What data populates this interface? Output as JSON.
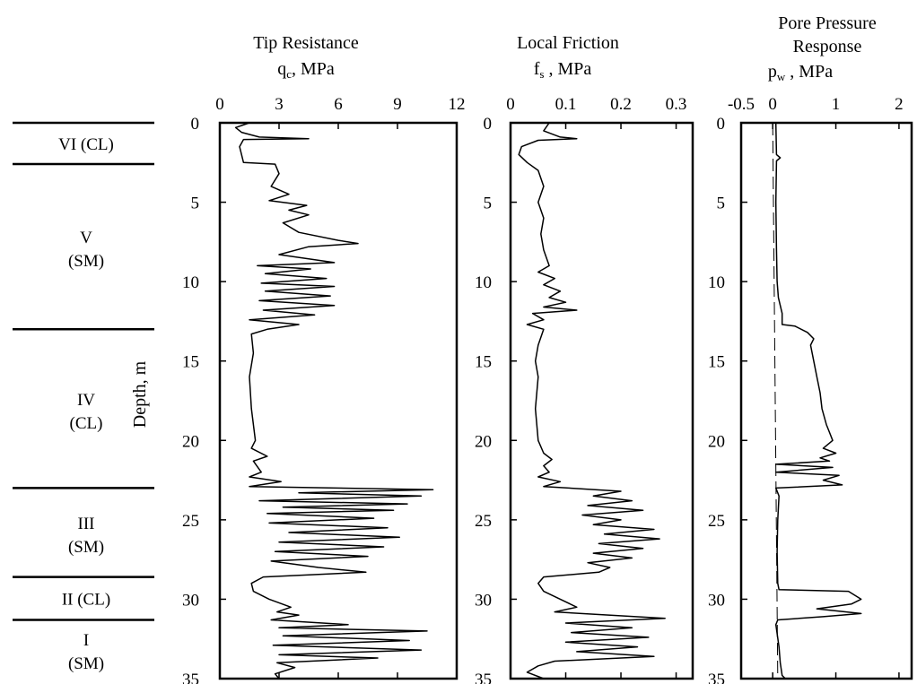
{
  "chart_data": {
    "type": "line",
    "y_axis": {
      "label": "Depth,  m",
      "range": [
        0,
        35
      ],
      "reversed": true,
      "ticks": [
        "0",
        "5",
        "10",
        "15",
        "20",
        "25",
        "30",
        "35"
      ]
    },
    "panels": [
      {
        "id": "tip",
        "title": "Tip Resistance",
        "xlabel_symbol": "q",
        "xlabel_sub": "c",
        "xlabel_unit": ",  MPa",
        "xlim": [
          0,
          12
        ],
        "xticks": [
          "0",
          "3",
          "6",
          "9",
          "12"
        ],
        "profile": [
          [
            0,
            1.5
          ],
          [
            0.3,
            0.8
          ],
          [
            0.6,
            1.1
          ],
          [
            0.9,
            2.0
          ],
          [
            1.0,
            4.5
          ],
          [
            1.05,
            1.2
          ],
          [
            1.5,
            1.0
          ],
          [
            2.5,
            1.2
          ],
          [
            2.6,
            2.8
          ],
          [
            3.2,
            3.0
          ],
          [
            4.0,
            2.6
          ],
          [
            4.5,
            3.5
          ],
          [
            4.9,
            2.5
          ],
          [
            5.2,
            4.4
          ],
          [
            5.5,
            3.5
          ],
          [
            5.8,
            4.5
          ],
          [
            6.3,
            3.2
          ],
          [
            6.9,
            4.0
          ],
          [
            7.4,
            6.0
          ],
          [
            7.6,
            7.0
          ],
          [
            7.8,
            4.5
          ],
          [
            8.3,
            3.0
          ],
          [
            8.8,
            5.8
          ],
          [
            9.0,
            1.9
          ],
          [
            9.2,
            4.6
          ],
          [
            9.5,
            2.3
          ],
          [
            9.8,
            5.4
          ],
          [
            10.1,
            2.1
          ],
          [
            10.3,
            5.8
          ],
          [
            10.6,
            2.3
          ],
          [
            10.9,
            5.6
          ],
          [
            11.2,
            2.0
          ],
          [
            11.5,
            5.8
          ],
          [
            11.8,
            2.2
          ],
          [
            12.1,
            4.8
          ],
          [
            12.4,
            1.5
          ],
          [
            12.7,
            4.0
          ],
          [
            13.0,
            2.4
          ],
          [
            13.3,
            1.6
          ],
          [
            14.5,
            1.7
          ],
          [
            16.0,
            1.5
          ],
          [
            18.0,
            1.6
          ],
          [
            20.0,
            1.8
          ],
          [
            20.5,
            1.6
          ],
          [
            21.0,
            2.4
          ],
          [
            21.3,
            1.7
          ],
          [
            22.0,
            2.1
          ],
          [
            22.3,
            1.5
          ],
          [
            22.6,
            3.1
          ],
          [
            22.9,
            1.5
          ],
          [
            23.1,
            10.8
          ],
          [
            23.3,
            4.0
          ],
          [
            23.5,
            10.2
          ],
          [
            23.8,
            2.0
          ],
          [
            24.0,
            9.5
          ],
          [
            24.2,
            3.2
          ],
          [
            24.4,
            8.8
          ],
          [
            24.6,
            2.4
          ],
          [
            24.9,
            7.8
          ],
          [
            25.2,
            2.5
          ],
          [
            25.5,
            8.5
          ],
          [
            25.8,
            3.5
          ],
          [
            26.1,
            9.1
          ],
          [
            26.4,
            3.0
          ],
          [
            26.7,
            8.3
          ],
          [
            27.0,
            2.8
          ],
          [
            27.3,
            7.5
          ],
          [
            27.6,
            2.6
          ],
          [
            28.0,
            5.0
          ],
          [
            28.3,
            7.4
          ],
          [
            28.6,
            2.2
          ],
          [
            29.0,
            1.6
          ],
          [
            29.5,
            1.7
          ],
          [
            30.0,
            2.5
          ],
          [
            30.5,
            3.6
          ],
          [
            30.8,
            2.9
          ],
          [
            31.0,
            4.0
          ],
          [
            31.3,
            2.6
          ],
          [
            31.6,
            6.5
          ],
          [
            31.8,
            3.0
          ],
          [
            32.0,
            10.5
          ],
          [
            32.3,
            3.2
          ],
          [
            32.6,
            9.6
          ],
          [
            32.9,
            2.7
          ],
          [
            33.2,
            10.2
          ],
          [
            33.5,
            3.0
          ],
          [
            33.7,
            8.0
          ],
          [
            34.0,
            2.9
          ],
          [
            34.3,
            3.8
          ],
          [
            34.7,
            2.8
          ],
          [
            35.0,
            3.0
          ]
        ]
      },
      {
        "id": "friction",
        "title": "Local Friction",
        "xlabel_symbol": "f",
        "xlabel_sub": "s",
        "xlabel_unit": " ,  MPa",
        "xlim": [
          0,
          0.33
        ],
        "xticks": [
          "0",
          "0.1",
          "0.2",
          "0.3"
        ],
        "profile": [
          [
            0,
            0.07
          ],
          [
            0.5,
            0.06
          ],
          [
            0.9,
            0.09
          ],
          [
            1.0,
            0.12
          ],
          [
            1.1,
            0.05
          ],
          [
            1.5,
            0.02
          ],
          [
            2.0,
            0.015
          ],
          [
            2.5,
            0.03
          ],
          [
            3.0,
            0.05
          ],
          [
            4.0,
            0.06
          ],
          [
            5.0,
            0.05
          ],
          [
            6.0,
            0.06
          ],
          [
            7.0,
            0.055
          ],
          [
            8.0,
            0.06
          ],
          [
            9.0,
            0.07
          ],
          [
            9.4,
            0.05
          ],
          [
            9.8,
            0.08
          ],
          [
            10.2,
            0.06
          ],
          [
            10.6,
            0.09
          ],
          [
            11.0,
            0.07
          ],
          [
            11.3,
            0.1
          ],
          [
            11.6,
            0.06
          ],
          [
            11.8,
            0.12
          ],
          [
            12.0,
            0.04
          ],
          [
            12.4,
            0.06
          ],
          [
            12.7,
            0.03
          ],
          [
            13.0,
            0.06
          ],
          [
            14.0,
            0.05
          ],
          [
            15.0,
            0.045
          ],
          [
            16.0,
            0.05
          ],
          [
            18.0,
            0.045
          ],
          [
            20.0,
            0.05
          ],
          [
            20.8,
            0.06
          ],
          [
            21.2,
            0.075
          ],
          [
            21.6,
            0.06
          ],
          [
            22.0,
            0.07
          ],
          [
            22.3,
            0.05
          ],
          [
            22.6,
            0.09
          ],
          [
            22.9,
            0.06
          ],
          [
            23.2,
            0.2
          ],
          [
            23.5,
            0.15
          ],
          [
            23.8,
            0.22
          ],
          [
            24.1,
            0.14
          ],
          [
            24.4,
            0.24
          ],
          [
            24.7,
            0.13
          ],
          [
            25.0,
            0.2
          ],
          [
            25.3,
            0.15
          ],
          [
            25.6,
            0.26
          ],
          [
            25.9,
            0.17
          ],
          [
            26.2,
            0.27
          ],
          [
            26.5,
            0.16
          ],
          [
            26.8,
            0.24
          ],
          [
            27.1,
            0.15
          ],
          [
            27.4,
            0.22
          ],
          [
            27.7,
            0.14
          ],
          [
            28.0,
            0.18
          ],
          [
            28.3,
            0.16
          ],
          [
            28.6,
            0.06
          ],
          [
            29.0,
            0.05
          ],
          [
            29.5,
            0.06
          ],
          [
            30.0,
            0.09
          ],
          [
            30.5,
            0.12
          ],
          [
            30.8,
            0.08
          ],
          [
            31.2,
            0.28
          ],
          [
            31.5,
            0.1
          ],
          [
            31.8,
            0.22
          ],
          [
            32.1,
            0.11
          ],
          [
            32.4,
            0.25
          ],
          [
            32.7,
            0.1
          ],
          [
            33.0,
            0.23
          ],
          [
            33.3,
            0.12
          ],
          [
            33.6,
            0.26
          ],
          [
            33.9,
            0.08
          ],
          [
            34.2,
            0.05
          ],
          [
            34.6,
            0.03
          ],
          [
            35.0,
            0.06
          ]
        ]
      },
      {
        "id": "pore",
        "title": "Pore Pressure",
        "title2": "Response",
        "xlabel_symbol": "p",
        "xlabel_sub": "w",
        "xlabel_unit": " ,  MPa",
        "xlim": [
          -0.5,
          2.2
        ],
        "xticks": [
          "-0.5",
          "0",
          "1",
          "2"
        ],
        "hydrostatic": [
          [
            0,
            0.0
          ],
          [
            35,
            0.08
          ]
        ],
        "profile": [
          [
            0,
            0.05
          ],
          [
            2.0,
            0.06
          ],
          [
            2.2,
            0.12
          ],
          [
            2.4,
            0.06
          ],
          [
            5.0,
            0.05
          ],
          [
            8.0,
            0.06
          ],
          [
            10.0,
            0.07
          ],
          [
            11.0,
            0.09
          ],
          [
            12.0,
            0.15
          ],
          [
            12.7,
            0.15
          ],
          [
            12.8,
            0.35
          ],
          [
            13.2,
            0.55
          ],
          [
            13.6,
            0.65
          ],
          [
            14.0,
            0.6
          ],
          [
            15.0,
            0.65
          ],
          [
            16.0,
            0.7
          ],
          [
            17.0,
            0.75
          ],
          [
            18.0,
            0.78
          ],
          [
            19.0,
            0.85
          ],
          [
            19.5,
            0.9
          ],
          [
            20.0,
            0.95
          ],
          [
            20.5,
            0.8
          ],
          [
            20.8,
            1.0
          ],
          [
            21.1,
            0.75
          ],
          [
            21.3,
            0.9
          ],
          [
            21.5,
            0.05
          ],
          [
            21.7,
            0.95
          ],
          [
            22.0,
            0.05
          ],
          [
            22.2,
            1.05
          ],
          [
            22.5,
            0.8
          ],
          [
            22.8,
            1.1
          ],
          [
            23.0,
            0.05
          ],
          [
            23.5,
            0.1
          ],
          [
            25.0,
            0.08
          ],
          [
            27.0,
            0.07
          ],
          [
            29.0,
            0.08
          ],
          [
            29.4,
            0.1
          ],
          [
            29.5,
            1.2
          ],
          [
            30.0,
            1.4
          ],
          [
            30.3,
            1.25
          ],
          [
            30.6,
            0.7
          ],
          [
            30.9,
            1.4
          ],
          [
            31.1,
            0.8
          ],
          [
            31.3,
            0.08
          ],
          [
            31.6,
            0.05
          ],
          [
            33.0,
            0.1
          ],
          [
            34.0,
            0.12
          ],
          [
            34.8,
            0.15
          ],
          [
            35.0,
            0.2
          ]
        ]
      }
    ],
    "zones": [
      {
        "label": "VI (CL)",
        "label2": "",
        "top": 0,
        "bottom": 2.6
      },
      {
        "label": "V",
        "label2": "(SM)",
        "top": 2.6,
        "bottom": 13.0
      },
      {
        "label": "IV",
        "label2": "(CL)",
        "top": 13.0,
        "bottom": 23.0
      },
      {
        "label": "III",
        "label2": "(SM)",
        "top": 23.0,
        "bottom": 28.6
      },
      {
        "label": "II (CL)",
        "label2": "",
        "top": 28.6,
        "bottom": 31.3
      },
      {
        "label": "I",
        "label2": "(SM)",
        "top": 31.3,
        "bottom": 35
      }
    ]
  }
}
